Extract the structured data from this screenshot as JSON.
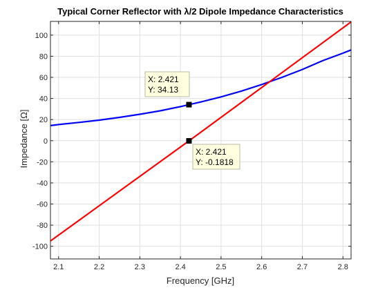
{
  "chart_data": {
    "type": "line",
    "title": "Typical Corner Reflector with λ/2 Dipole Impedance Characteristics",
    "xlabel": "Frequency [GHz]",
    "ylabel": "Impedance [Ω]",
    "xlim": [
      2.08,
      2.82
    ],
    "ylim": [
      -112,
      113
    ],
    "xticks": [
      2.1,
      2.2,
      2.3,
      2.4,
      2.5,
      2.6,
      2.7,
      2.8
    ],
    "xtick_labels": [
      "2.1",
      "2.2",
      "2.3",
      "2.4",
      "2.5",
      "2.6",
      "2.7",
      "2.8"
    ],
    "yticks": [
      -100,
      -80,
      -60,
      -40,
      -20,
      0,
      20,
      40,
      60,
      80,
      100
    ],
    "ytick_labels": [
      "-100",
      "-80",
      "-60",
      "-40",
      "-20",
      "0",
      "20",
      "40",
      "60",
      "80",
      "100"
    ],
    "grid": true,
    "series": [
      {
        "color": "#0000ff",
        "x": [
          2.08,
          2.1,
          2.15,
          2.2,
          2.25,
          2.3,
          2.35,
          2.4,
          2.421,
          2.45,
          2.5,
          2.55,
          2.6,
          2.65,
          2.7,
          2.75,
          2.8,
          2.82
        ],
        "y": [
          14.3,
          15.3,
          17.3,
          19.5,
          22.1,
          25.0,
          28.3,
          32.3,
          34.13,
          36.7,
          41.5,
          47.0,
          53.2,
          60.0,
          67.5,
          75.8,
          82.9,
          86.0
        ]
      },
      {
        "color": "#ff0000",
        "x": [
          2.08,
          2.421,
          2.82
        ],
        "y": [
          -95.0,
          -0.1818,
          112.5
        ]
      }
    ],
    "datatips": [
      {
        "marker_x": 2.421,
        "marker_y": 34.13,
        "line1": "X: 2.421",
        "line2": "Y: 34.13"
      },
      {
        "marker_x": 2.421,
        "marker_y": -0.1818,
        "line1": "X: 2.421",
        "line2": "Y: -0.1818"
      }
    ]
  }
}
